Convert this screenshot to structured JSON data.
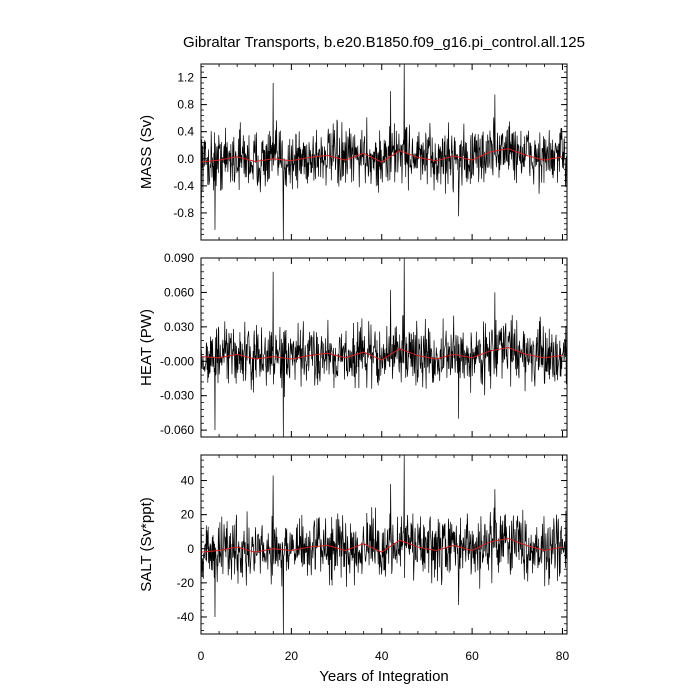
{
  "chart_data": {
    "type": "line",
    "title": "Gibraltar Transports, b.e20.B1850.f09_g16.pi_control.all.125",
    "xlabel": "Years of Integration",
    "xlim": [
      0,
      81
    ],
    "x_ticks": [
      "0",
      "20",
      "40",
      "60",
      "80"
    ],
    "grid": false,
    "colors": {
      "raw": "#000000",
      "smoothed": "#d62020"
    },
    "panels": [
      {
        "ylabel": "MASS (Sv)",
        "ylim": [
          -1.2,
          1.4
        ],
        "y_ticks": [
          "-0.8",
          "-0.4",
          "0.0",
          "0.4",
          "0.8",
          "1.2"
        ],
        "y_tick_values": [
          -0.8,
          -0.4,
          0.0,
          0.4,
          0.8,
          1.2
        ],
        "amplitude": 0.22,
        "spikes": [
          {
            "x": 3.1,
            "y": -1.05
          },
          {
            "x": 16.0,
            "y": 1.12
          },
          {
            "x": 18.2,
            "y": -1.2
          },
          {
            "x": 45.0,
            "y": 1.4
          },
          {
            "x": 42.0,
            "y": 1.0
          },
          {
            "x": 57.0,
            "y": -0.85
          },
          {
            "x": 65.0,
            "y": 0.95
          }
        ],
        "series": [
          {
            "x": [
              0,
              4,
              8,
              12,
              16,
              20,
              24,
              28,
              32,
              36,
              40,
              44,
              48,
              52,
              56,
              60,
              64,
              68,
              72,
              76,
              80
            ],
            "values": [
              -0.05,
              -0.02,
              0.03,
              -0.04,
              0.0,
              -0.03,
              0.02,
              0.05,
              -0.02,
              0.08,
              -0.05,
              0.12,
              0.02,
              -0.03,
              0.04,
              -0.02,
              0.1,
              0.15,
              0.05,
              -0.02,
              0.03
            ]
          }
        ]
      },
      {
        "ylabel": "HEAT (PW)",
        "ylim": [
          -0.066,
          0.09
        ],
        "y_ticks": [
          "-0.060",
          "-0.030",
          "-0.000",
          "0.030",
          "0.060",
          "0.090"
        ],
        "y_tick_values": [
          -0.06,
          -0.03,
          0.0,
          0.03,
          0.06,
          0.09
        ],
        "amplitude": 0.013,
        "spikes": [
          {
            "x": 3.1,
            "y": -0.06
          },
          {
            "x": 16.0,
            "y": 0.078
          },
          {
            "x": 18.2,
            "y": -0.066
          },
          {
            "x": 45.0,
            "y": 0.09
          },
          {
            "x": 42.0,
            "y": 0.062
          },
          {
            "x": 57.0,
            "y": -0.05
          },
          {
            "x": 65.0,
            "y": 0.06
          }
        ],
        "series": [
          {
            "x": [
              0,
              4,
              8,
              12,
              16,
              20,
              24,
              28,
              32,
              36,
              40,
              44,
              48,
              52,
              56,
              60,
              64,
              68,
              72,
              76,
              80
            ],
            "values": [
              0.004,
              0.003,
              0.006,
              0.002,
              0.004,
              0.002,
              0.005,
              0.007,
              0.003,
              0.008,
              0.001,
              0.011,
              0.005,
              0.002,
              0.006,
              0.003,
              0.009,
              0.012,
              0.006,
              0.003,
              0.005
            ]
          }
        ]
      },
      {
        "ylabel": "SALT (Sv*ppt)",
        "ylim": [
          -50,
          55
        ],
        "y_ticks": [
          "-40",
          "-20",
          "0",
          "20",
          "40"
        ],
        "y_tick_values": [
          -40,
          -20,
          0,
          20,
          40
        ],
        "amplitude": 9,
        "spikes": [
          {
            "x": 3.1,
            "y": -40
          },
          {
            "x": 16.0,
            "y": 43
          },
          {
            "x": 18.2,
            "y": -50
          },
          {
            "x": 45.0,
            "y": 55
          },
          {
            "x": 42.0,
            "y": 38
          },
          {
            "x": 57.0,
            "y": -33
          },
          {
            "x": 65.0,
            "y": 35
          }
        ],
        "series": [
          {
            "x": [
              0,
              4,
              8,
              12,
              16,
              20,
              24,
              28,
              32,
              36,
              40,
              44,
              48,
              52,
              56,
              60,
              64,
              68,
              72,
              76,
              80
            ],
            "values": [
              -2,
              -1,
              1,
              -2,
              0,
              -1,
              1,
              2,
              -1,
              3,
              -2,
              5,
              1,
              -1,
              2,
              -1,
              4,
              6,
              2,
              -1,
              1
            ]
          }
        ]
      }
    ]
  }
}
